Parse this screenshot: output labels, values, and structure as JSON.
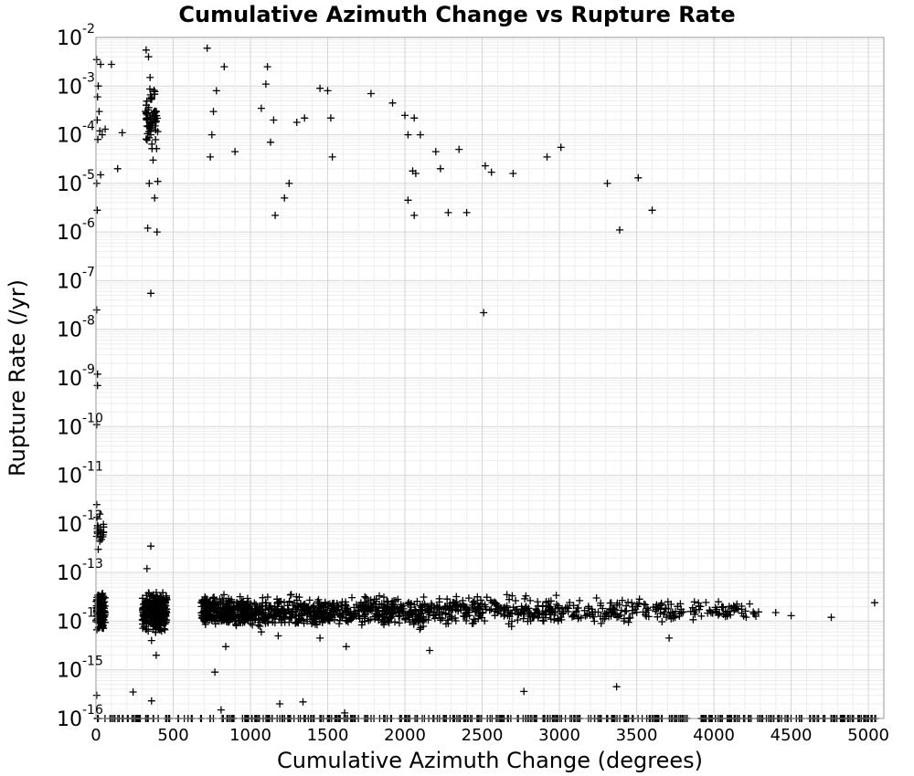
{
  "chart_data": {
    "type": "scatter",
    "title": "Cumulative Azimuth Change vs Rupture Rate",
    "xlabel": "Cumulative Azimuth Change (degrees)",
    "ylabel": "Rupture Rate (/yr)",
    "xlim": [
      0,
      5100
    ],
    "ylim": [
      1e-16,
      0.01
    ],
    "yscale": "log",
    "grid": true,
    "legend": "none",
    "marker": "plus",
    "marker_color": "#000000",
    "x_ticks": [
      "0",
      "500",
      "1000",
      "1500",
      "2000",
      "2500",
      "3000",
      "3500",
      "4000",
      "4500",
      "5000"
    ],
    "y_ticks": [
      {
        "base": "10",
        "exp": "-16"
      },
      {
        "base": "10",
        "exp": "-15"
      },
      {
        "base": "10",
        "exp": "-14"
      },
      {
        "base": "10",
        "exp": "-13"
      },
      {
        "base": "10",
        "exp": "-12"
      },
      {
        "base": "10",
        "exp": "-11"
      },
      {
        "base": "10",
        "exp": "-10"
      },
      {
        "base": "10",
        "exp": "-9"
      },
      {
        "base": "10",
        "exp": "-8"
      },
      {
        "base": "10",
        "exp": "-7"
      },
      {
        "base": "10",
        "exp": "-6"
      },
      {
        "base": "10",
        "exp": "-5"
      },
      {
        "base": "10",
        "exp": "-4"
      },
      {
        "base": "10",
        "exp": "-3"
      },
      {
        "base": "10",
        "exp": "-2"
      }
    ],
    "series": [
      {
        "points": [
          [
            5,
            0.0035
          ],
          [
            30,
            0.0028
          ],
          [
            15,
            0.001
          ],
          [
            10,
            0.0006
          ],
          [
            20,
            0.0003
          ],
          [
            8,
            0.0002
          ],
          [
            25,
            0.00012
          ],
          [
            12,
            8e-05
          ],
          [
            40,
            0.0001
          ],
          [
            60,
            0.00013
          ],
          [
            30,
            1.5e-05
          ],
          [
            100,
            0.0028
          ],
          [
            170,
            0.00011
          ],
          [
            140,
            2e-05
          ],
          [
            5,
            1e-05
          ],
          [
            8,
            2.8e-06
          ],
          [
            5,
            2.5e-08
          ],
          [
            10,
            1.2e-09
          ],
          [
            10,
            7e-10
          ],
          [
            5,
            1.1e-10
          ],
          [
            325,
            0.0055
          ],
          [
            340,
            0.004
          ],
          [
            350,
            0.0015
          ],
          [
            360,
            0.0006
          ],
          [
            330,
            0.0002
          ],
          [
            355,
            0.0001
          ],
          [
            370,
            3e-05
          ],
          [
            345,
            1e-05
          ],
          [
            380,
            5e-06
          ],
          [
            400,
            1.1e-05
          ],
          [
            335,
            1.2e-06
          ],
          [
            395,
            1e-06
          ],
          [
            355,
            5.5e-08
          ],
          [
            720,
            0.006
          ],
          [
            830,
            0.0025
          ],
          [
            780,
            0.0008
          ],
          [
            760,
            0.0003
          ],
          [
            750,
            0.0001
          ],
          [
            740,
            3.5e-05
          ],
          [
            900,
            4.5e-05
          ],
          [
            1070,
            0.00035
          ],
          [
            1110,
            0.0025
          ],
          [
            1100,
            0.0011
          ],
          [
            1150,
            0.0002
          ],
          [
            1130,
            7e-05
          ],
          [
            1160,
            2.2e-06
          ],
          [
            1250,
            1e-05
          ],
          [
            1220,
            5e-06
          ],
          [
            1300,
            0.00018
          ],
          [
            1350,
            0.00022
          ],
          [
            1450,
            0.0009
          ],
          [
            1500,
            0.0008
          ],
          [
            1520,
            0.00022
          ],
          [
            1530,
            3.5e-05
          ],
          [
            1780,
            0.0007
          ],
          [
            1920,
            0.00045
          ],
          [
            2000,
            0.00025
          ],
          [
            2060,
            0.00022
          ],
          [
            2100,
            0.0001
          ],
          [
            2020,
            0.0001
          ],
          [
            2050,
            1.8e-05
          ],
          [
            2070,
            1.6e-05
          ],
          [
            2020,
            4.5e-06
          ],
          [
            2060,
            2.2e-06
          ],
          [
            2200,
            4.5e-05
          ],
          [
            2230,
            2e-05
          ],
          [
            2280,
            2.5e-06
          ],
          [
            2350,
            5e-05
          ],
          [
            2400,
            2.5e-06
          ],
          [
            2520,
            2.3e-05
          ],
          [
            2560,
            1.7e-05
          ],
          [
            2700,
            1.6e-05
          ],
          [
            2920,
            3.5e-05
          ],
          [
            3010,
            5.5e-05
          ],
          [
            3310,
            1e-05
          ],
          [
            3390,
            1.1e-06
          ],
          [
            3510,
            1.3e-05
          ],
          [
            3600,
            2.8e-06
          ],
          [
            2510,
            2.2e-08
          ],
          [
            5,
            2.5e-12
          ],
          [
            8,
            8e-13
          ],
          [
            15,
            3e-13
          ],
          [
            355,
            3.5e-13
          ],
          [
            330,
            1.2e-13
          ],
          [
            400,
            3e-14
          ],
          [
            1750,
            3e-14
          ],
          [
            2660,
            3.5e-14
          ],
          [
            3240,
            3e-14
          ],
          [
            4030,
            2.5e-14
          ],
          [
            4400,
            1.5e-14
          ],
          [
            4500,
            1.3e-14
          ],
          [
            4760,
            1.2e-14
          ],
          [
            5040,
            2.4e-14
          ],
          [
            3710,
            4.5e-15
          ],
          [
            3270,
            9e-15
          ],
          [
            2770,
            3.6e-16
          ],
          [
            3370,
            4.5e-16
          ],
          [
            2160,
            2.5e-15
          ],
          [
            1620,
            3e-15
          ],
          [
            1450,
            4.5e-15
          ],
          [
            1180,
            5e-15
          ],
          [
            1070,
            6e-15
          ],
          [
            840,
            3e-15
          ],
          [
            770,
            9e-16
          ],
          [
            390,
            2e-15
          ],
          [
            360,
            4e-15
          ],
          [
            240,
            3.5e-16
          ],
          [
            360,
            2.3e-16
          ],
          [
            1610,
            1.3e-16
          ],
          [
            1340,
            2.2e-16
          ],
          [
            1190,
            2e-16
          ],
          [
            810,
            1.5e-16
          ],
          [
            10,
            1e-16
          ],
          [
            5,
            3e-16
          ]
        ]
      }
    ],
    "clusters": [
      {
        "x": [
          0,
          60
        ],
        "y": [
          5e-15,
          5e-14
        ],
        "count": 140
      },
      {
        "x": [
          0,
          50
        ],
        "y": [
          2e-13,
          2e-12
        ],
        "count": 22
      },
      {
        "x": [
          300,
          460
        ],
        "y": [
          5e-15,
          5e-14
        ],
        "count": 320
      },
      {
        "x": [
          320,
          400
        ],
        "y": [
          3e-05,
          0.0015
        ],
        "count": 60
      },
      {
        "x": [
          680,
          1000
        ],
        "y": [
          6e-15,
          4e-14
        ],
        "count": 300
      },
      {
        "x": [
          1000,
          1500
        ],
        "y": [
          6e-15,
          4e-14
        ],
        "count": 280
      },
      {
        "x": [
          1500,
          2200
        ],
        "y": [
          6e-15,
          4e-14
        ],
        "count": 300
      },
      {
        "x": [
          2200,
          3000
        ],
        "y": [
          7e-15,
          4e-14
        ],
        "count": 230
      },
      {
        "x": [
          3000,
          3800
        ],
        "y": [
          8e-15,
          3.5e-14
        ],
        "count": 140
      },
      {
        "x": [
          3800,
          4300
        ],
        "y": [
          9e-15,
          3e-14
        ],
        "count": 60
      },
      {
        "x": [
          0,
          5050
        ],
        "y": [
          1e-16,
          1e-16
        ],
        "count": 420
      }
    ]
  }
}
